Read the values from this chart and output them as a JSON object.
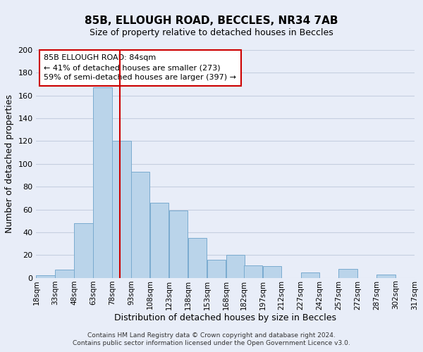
{
  "title": "85B, ELLOUGH ROAD, BECCLES, NR34 7AB",
  "subtitle": "Size of property relative to detached houses in Beccles",
  "xlabel": "Distribution of detached houses by size in Beccles",
  "ylabel": "Number of detached properties",
  "bar_color": "#bad4ea",
  "bar_edge_color": "#7aabcf",
  "bins_left": [
    18,
    33,
    48,
    63,
    78,
    93,
    108,
    123,
    138,
    153,
    168,
    182,
    197,
    212,
    227,
    242,
    257,
    272,
    287,
    302
  ],
  "bin_width": 15,
  "heights": [
    2,
    7,
    48,
    167,
    120,
    93,
    66,
    59,
    35,
    16,
    20,
    11,
    10,
    0,
    5,
    0,
    8,
    0,
    3,
    0
  ],
  "tick_labels": [
    "18sqm",
    "33sqm",
    "48sqm",
    "63sqm",
    "78sqm",
    "93sqm",
    "108sqm",
    "123sqm",
    "138sqm",
    "153sqm",
    "168sqm",
    "182sqm",
    "197sqm",
    "212sqm",
    "227sqm",
    "242sqm",
    "257sqm",
    "272sqm",
    "287sqm",
    "302sqm",
    "317sqm"
  ],
  "tick_positions": [
    18,
    33,
    48,
    63,
    78,
    93,
    108,
    123,
    138,
    153,
    168,
    182,
    197,
    212,
    227,
    242,
    257,
    272,
    287,
    302,
    317
  ],
  "ylim": [
    0,
    200
  ],
  "yticks": [
    0,
    20,
    40,
    60,
    80,
    100,
    120,
    140,
    160,
    180,
    200
  ],
  "vline_x": 84,
  "vline_color": "#cc0000",
  "annotation_title": "85B ELLOUGH ROAD: 84sqm",
  "annotation_line1": "← 41% of detached houses are smaller (273)",
  "annotation_line2": "59% of semi-detached houses are larger (397) →",
  "annotation_box_facecolor": "#ffffff",
  "annotation_box_edgecolor": "#cc0000",
  "footer1": "Contains HM Land Registry data © Crown copyright and database right 2024.",
  "footer2": "Contains public sector information licensed under the Open Government Licence v3.0.",
  "background_color": "#e8edf8",
  "plot_background_color": "#e8edf8",
  "grid_color": "#c5cfe0"
}
